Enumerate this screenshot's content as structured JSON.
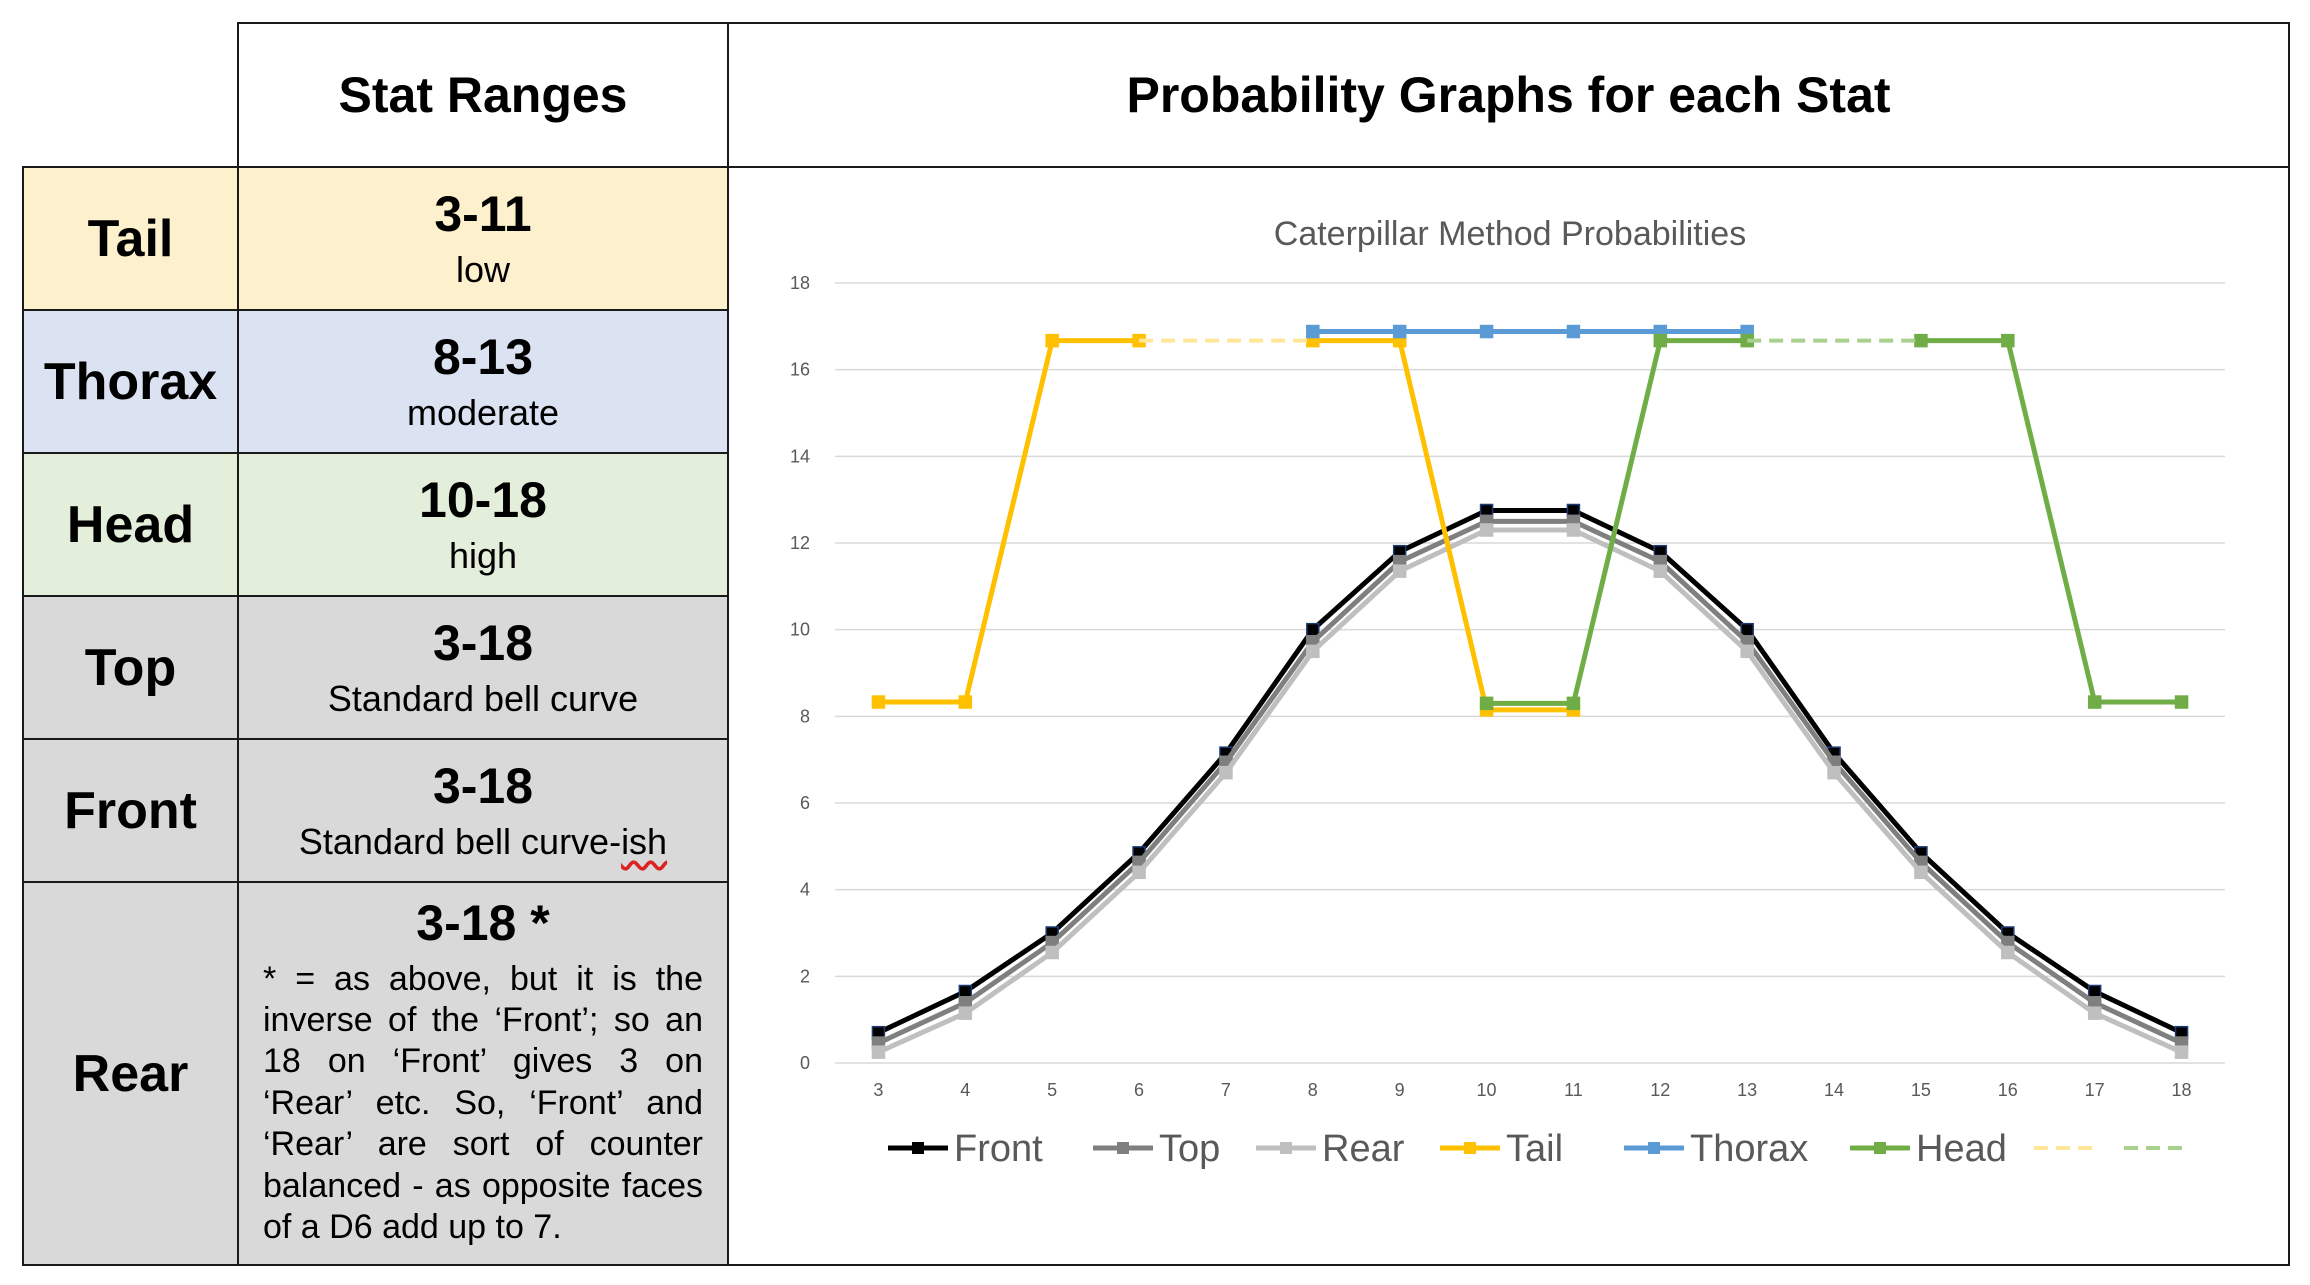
{
  "headers": {
    "stat_ranges": "Stat Ranges",
    "probability_graphs": "Probability Graphs for each Stat"
  },
  "rows": [
    {
      "label": "Tail",
      "range": "3-11",
      "desc": "low"
    },
    {
      "label": "Thorax",
      "range": "8-13",
      "desc": "moderate"
    },
    {
      "label": "Head",
      "range": "10-18",
      "desc": "high"
    },
    {
      "label": "Top",
      "range": "3-18",
      "desc": "Standard bell curve"
    },
    {
      "label": "Front",
      "range": "3-18",
      "desc_prefix": "Standard bell curve-",
      "desc_suffix": "ish"
    },
    {
      "label": "Rear",
      "range": "3-18 *",
      "desc": "* = as above, but it is the inverse of the ‘Front’; so an 18 on ‘Front’ gives 3 on ‘Rear’ etc. So, ‘Front’ and ‘Rear’ are sort of counter balanced - as opposite faces of a D6 add up to 7."
    }
  ],
  "colors": {
    "front": "#000000",
    "top": "#7f7f7f",
    "rear": "#bfbfbf",
    "tail": "#ffc000",
    "thorax": "#5b9bd5",
    "head": "#70ad47",
    "tail_dashed": "#ffe699",
    "head_dashed": "#a9d18e",
    "grid": "#d9d9d9",
    "axis_text": "#595959"
  },
  "chart_data": {
    "type": "line",
    "title": "Caterpillar Method Probabilities",
    "xlabel": "",
    "ylabel": "",
    "x": [
      3,
      4,
      5,
      6,
      7,
      8,
      9,
      10,
      11,
      12,
      13,
      14,
      15,
      16,
      17,
      18
    ],
    "ylim": [
      0,
      18
    ],
    "yticks": [
      0,
      2,
      4,
      6,
      8,
      10,
      12,
      14,
      16,
      18
    ],
    "grid": true,
    "legend_position": "bottom",
    "series": [
      {
        "name": "Front",
        "color_key": "front",
        "style": "solid",
        "marker": true,
        "x": [
          3,
          4,
          5,
          6,
          7,
          8,
          9,
          10,
          11,
          12,
          13,
          14,
          15,
          16,
          17,
          18
        ],
        "values": [
          0.7,
          1.65,
          3.0,
          4.85,
          7.15,
          10.0,
          11.8,
          12.75,
          12.75,
          11.8,
          10.0,
          7.15,
          4.85,
          3.0,
          1.65,
          0.7
        ]
      },
      {
        "name": "Top",
        "color_key": "top",
        "style": "solid",
        "marker": true,
        "x": [
          3,
          4,
          5,
          6,
          7,
          8,
          9,
          10,
          11,
          12,
          13,
          14,
          15,
          16,
          17,
          18
        ],
        "values": [
          0.46,
          1.39,
          2.78,
          4.63,
          6.94,
          9.72,
          11.57,
          12.5,
          12.5,
          11.57,
          9.72,
          6.94,
          4.63,
          2.78,
          1.39,
          0.46
        ]
      },
      {
        "name": "Rear",
        "color_key": "rear",
        "style": "solid",
        "marker": true,
        "x": [
          3,
          4,
          5,
          6,
          7,
          8,
          9,
          10,
          11,
          12,
          13,
          14,
          15,
          16,
          17,
          18
        ],
        "values": [
          0.25,
          1.15,
          2.55,
          4.4,
          6.7,
          9.5,
          11.35,
          12.3,
          12.3,
          11.35,
          9.5,
          6.7,
          4.4,
          2.55,
          1.15,
          0.25
        ]
      },
      {
        "name": "Tail",
        "color_key": "tail",
        "style": "solid",
        "marker": true,
        "x": [
          3,
          4,
          5,
          6
        ],
        "values": [
          8.33,
          8.33,
          16.67,
          16.67
        ]
      },
      {
        "name": "Tail",
        "color_key": "tail",
        "style": "solid",
        "marker": true,
        "legend": false,
        "x": [
          8,
          9,
          10,
          11
        ],
        "values": [
          16.67,
          16.67,
          8.15,
          8.15
        ]
      },
      {
        "name": "Thorax",
        "color_key": "thorax",
        "style": "solid",
        "marker": true,
        "x": [
          8,
          9,
          10,
          11,
          12,
          13
        ],
        "values": [
          16.88,
          16.88,
          16.88,
          16.88,
          16.88,
          16.88
        ]
      },
      {
        "name": "Head",
        "color_key": "head",
        "style": "solid",
        "marker": true,
        "x": [
          10,
          11,
          12,
          13
        ],
        "values": [
          8.3,
          8.3,
          16.67,
          16.67
        ]
      },
      {
        "name": "Head",
        "color_key": "head",
        "style": "solid",
        "marker": true,
        "legend": false,
        "x": [
          15,
          16,
          17,
          18
        ],
        "values": [
          16.67,
          16.67,
          8.33,
          8.33
        ]
      },
      {
        "name": "",
        "color_key": "tail_dashed",
        "style": "dashed",
        "marker": false,
        "x": [
          6,
          8
        ],
        "values": [
          16.67,
          16.67
        ]
      },
      {
        "name": "",
        "color_key": "head_dashed",
        "style": "dashed",
        "marker": false,
        "x": [
          13,
          15
        ],
        "values": [
          16.67,
          16.67
        ]
      }
    ],
    "legend": [
      {
        "name": "Front",
        "color_key": "front",
        "style": "solid",
        "marker": true
      },
      {
        "name": "Top",
        "color_key": "top",
        "style": "solid",
        "marker": true
      },
      {
        "name": "Rear",
        "color_key": "rear",
        "style": "solid",
        "marker": true
      },
      {
        "name": "Tail",
        "color_key": "tail",
        "style": "solid",
        "marker": true
      },
      {
        "name": "Thorax",
        "color_key": "thorax",
        "style": "solid",
        "marker": true
      },
      {
        "name": "Head",
        "color_key": "head",
        "style": "solid",
        "marker": true
      },
      {
        "name": "",
        "color_key": "tail_dashed",
        "style": "dashed",
        "marker": false
      },
      {
        "name": "",
        "color_key": "head_dashed",
        "style": "dashed",
        "marker": false
      }
    ]
  }
}
